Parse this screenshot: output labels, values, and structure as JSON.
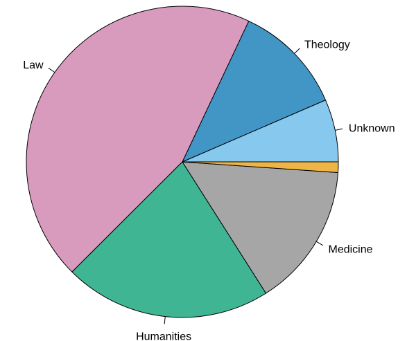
{
  "chart_data": {
    "type": "pie",
    "title": "",
    "start_angle_deg": 0,
    "direction": "counterclockwise",
    "slices": [
      {
        "label": "Unknown",
        "value": 6.5,
        "color": "#86C8EE"
      },
      {
        "label": "Theology",
        "value": 11.5,
        "color": "#4296C6"
      },
      {
        "label": "Law",
        "value": 44.5,
        "color": "#D89BBE"
      },
      {
        "label": "Humanities",
        "value": 21.5,
        "color": "#3FB594"
      },
      {
        "label": "Medicine",
        "value": 14.9,
        "color": "#A6A6A6"
      },
      {
        "label": "",
        "value": 1.1,
        "color": "#EEB546"
      }
    ]
  }
}
